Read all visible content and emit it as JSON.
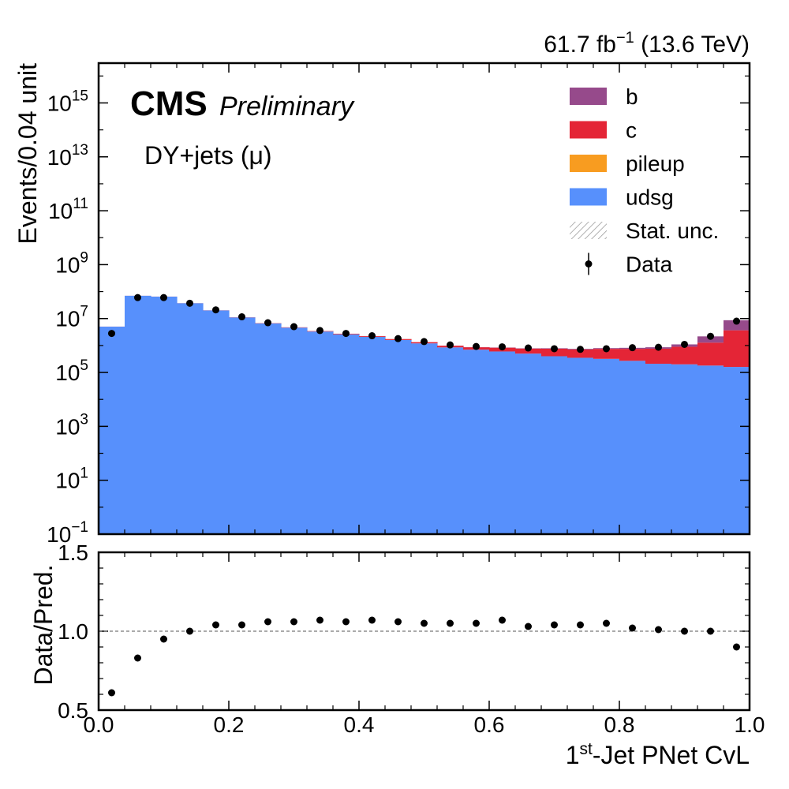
{
  "header": {
    "lumi": "61.7 fb",
    "lumi_exp": "−1",
    "energy": "(13.6 TeV)",
    "cms": "CMS",
    "preliminary": "Preliminary",
    "channel": "DY+jets (μ)"
  },
  "main_axes": {
    "ylabel": "Events/0.04 unit",
    "y_log": true,
    "ylim": [
      0.1,
      3e+16
    ],
    "yticks": [
      {
        "value": 0.1,
        "base": "10",
        "exp": "−1"
      },
      {
        "value": 10,
        "base": "10",
        "exp": "1"
      },
      {
        "value": 1000,
        "base": "10",
        "exp": "3"
      },
      {
        "value": 100000,
        "base": "10",
        "exp": "5"
      },
      {
        "value": 10000000,
        "base": "10",
        "exp": "7"
      },
      {
        "value": 1000000000,
        "base": "10",
        "exp": "9"
      },
      {
        "value": 100000000000,
        "base": "10",
        "exp": "11"
      },
      {
        "value": 10000000000000,
        "base": "10",
        "exp": "13"
      },
      {
        "value": 1000000000000000,
        "base": "10",
        "exp": "15"
      }
    ]
  },
  "ratio_axes": {
    "ylabel": "Data/Pred.",
    "ylim": [
      0.5,
      1.5
    ],
    "yticks": [
      "0.5",
      "1.0",
      "1.5"
    ],
    "reference_line": 1.0
  },
  "x_axis": {
    "label_prefix": "1",
    "label_sup": "st",
    "label_suffix": "-Jet PNet CvL",
    "xlim": [
      0.0,
      1.0
    ],
    "xticks": [
      "0.0",
      "0.2",
      "0.4",
      "0.6",
      "0.8",
      "1.0"
    ]
  },
  "legend": {
    "position": "top-right",
    "entries": [
      {
        "label": "b",
        "kind": "fill",
        "color": "#964a8b"
      },
      {
        "label": "c",
        "kind": "fill",
        "color": "#e42536"
      },
      {
        "label": "pileup",
        "kind": "fill",
        "color": "#f89c20"
      },
      {
        "label": "udsg",
        "kind": "fill",
        "color": "#5790fc"
      },
      {
        "label": "Stat. unc.",
        "kind": "hatch",
        "color": "#999999"
      },
      {
        "label": "Data",
        "kind": "marker",
        "color": "#000000"
      }
    ]
  },
  "chart_data": {
    "type": "bar",
    "stacked": true,
    "bin_width": 0.04,
    "bin_centers": [
      0.02,
      0.06,
      0.1,
      0.14,
      0.18,
      0.22,
      0.26,
      0.3,
      0.34,
      0.38,
      0.42,
      0.46,
      0.5,
      0.54,
      0.58,
      0.62,
      0.66,
      0.7,
      0.74,
      0.78,
      0.82,
      0.86,
      0.9,
      0.94,
      0.98
    ],
    "series": [
      {
        "name": "udsg",
        "color": "#5790fc",
        "values": [
          5000000.0,
          70000000.0,
          65000000.0,
          37000000.0,
          20000000.0,
          11000000.0,
          6600000.0,
          4600000.0,
          3300000.0,
          2600000.0,
          2100000.0,
          1600000.0,
          1200000.0,
          850000.0,
          700000.0,
          600000.0,
          500000.0,
          400000.0,
          350000.0,
          320000.0,
          270000.0,
          210000.0,
          200000.0,
          180000.0,
          160000.0
        ]
      },
      {
        "name": "pileup",
        "color": "#f89c20",
        "values": [
          2000.0,
          10000.0,
          10000.0,
          6000.0,
          3000.0,
          2000.0,
          1000.0,
          800.0,
          600.0,
          500.0,
          400.0,
          300.0,
          200.0,
          150.0,
          120.0,
          100.0,
          80.0,
          60.0,
          50.0,
          40.0,
          30.0,
          25.0,
          20.0,
          15.0,
          10.0
        ]
      },
      {
        "name": "c",
        "color": "#e42536",
        "values": [
          20000.0,
          200000.0,
          300000.0,
          250000.0,
          200000.0,
          150000.0,
          150000.0,
          130000.0,
          130000.0,
          130000.0,
          130000.0,
          130000.0,
          130000.0,
          130000.0,
          160000.0,
          230000.0,
          270000.0,
          360000.0,
          360000.0,
          430000.0,
          480000.0,
          550000.0,
          700000.0,
          1100000.0,
          3500000.0
        ]
      },
      {
        "name": "b",
        "color": "#964a8b",
        "values": [
          3000.0,
          30000.0,
          30000.0,
          20000.0,
          15000.0,
          12000.0,
          10000.0,
          10000.0,
          10000.0,
          10000.0,
          10000.0,
          10000.0,
          10000.0,
          10000.0,
          10000.0,
          15000.0,
          20000.0,
          30000.0,
          40000.0,
          50000.0,
          70000.0,
          100000.0,
          200000.0,
          900000.0,
          5000000.0
        ]
      }
    ],
    "data": {
      "name": "Data",
      "values": [
        2800000.0,
        60000000.0,
        60000000.0,
        37000000.0,
        21000000.0,
        11600000.0,
        7000000.0,
        5000000.0,
        3600000.0,
        2800000.0,
        2300000.0,
        1800000.0,
        1400000.0,
        1050000.0,
        920000.0,
        890000.0,
        810000.0,
        760000.0,
        720000.0,
        760000.0,
        830000.0,
        860000.0,
        1100000.0,
        2200000.0,
        8000000.0
      ]
    },
    "ratio": [
      0.61,
      0.83,
      0.95,
      1.0,
      1.04,
      1.04,
      1.06,
      1.06,
      1.07,
      1.06,
      1.07,
      1.06,
      1.05,
      1.05,
      1.05,
      1.07,
      1.03,
      1.04,
      1.04,
      1.05,
      1.02,
      1.01,
      1.0,
      1.0,
      0.9
    ]
  }
}
